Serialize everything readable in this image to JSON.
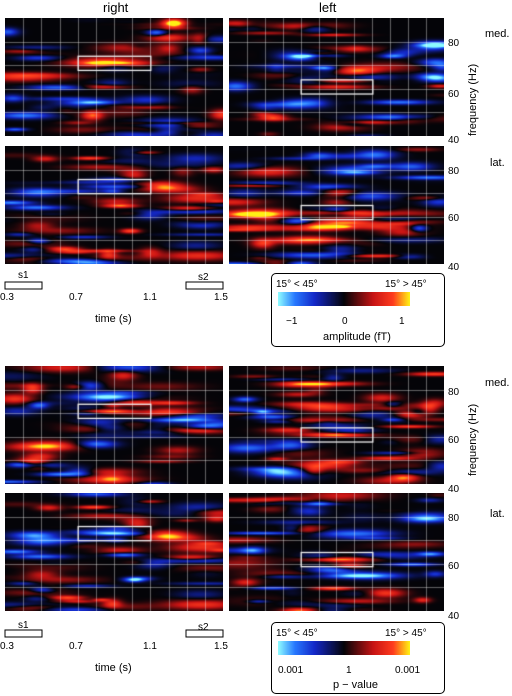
{
  "columns": {
    "right": "right",
    "left": "left"
  },
  "rows": {
    "med": "med.",
    "lat": "lat."
  },
  "y_axis": {
    "label": "frequency (Hz)",
    "ticks": [
      "80",
      "60",
      "40"
    ]
  },
  "time_axis": {
    "label": "time (s)",
    "ticks": [
      "0.3",
      "0.7",
      "1.1",
      "1.5"
    ],
    "s1": "s1",
    "s2": "s2"
  },
  "legend_top": {
    "left_title": "15° < 45°",
    "right_title": "15° > 45°",
    "ticks": [
      "−1",
      "0",
      "1"
    ],
    "label": "amplitude (fT)"
  },
  "legend_bottom": {
    "left_title": "15° < 45°",
    "right_title": "15° > 45°",
    "ticks": [
      "0.001",
      "1",
      "0.001"
    ],
    "label": "p − value"
  },
  "colors": {
    "positive": "#ff2a1a",
    "negative": "#1a50ff",
    "peak_pos": "#ffe600",
    "peak_neg": "#8af7ff"
  },
  "chart_data": [
    {
      "type": "heatmap",
      "block": "amplitude",
      "hemisphere": "right",
      "region": "med.",
      "x_range_s": [
        0.3,
        1.5
      ],
      "y_range_hz": [
        40,
        90
      ],
      "roi": {
        "t": [
          0.7,
          1.1
        ],
        "f": [
          68,
          74
        ]
      }
    },
    {
      "type": "heatmap",
      "block": "amplitude",
      "hemisphere": "left",
      "region": "med.",
      "x_range_s": [
        0.3,
        1.5
      ],
      "y_range_hz": [
        40,
        90
      ],
      "roi": {
        "t": [
          0.7,
          1.1
        ],
        "f": [
          58,
          64
        ]
      }
    },
    {
      "type": "heatmap",
      "block": "amplitude",
      "hemisphere": "right",
      "region": "lat.",
      "x_range_s": [
        0.3,
        1.5
      ],
      "y_range_hz": [
        40,
        90
      ],
      "roi": {
        "t": [
          0.7,
          1.1
        ],
        "f": [
          70,
          76
        ]
      }
    },
    {
      "type": "heatmap",
      "block": "amplitude",
      "hemisphere": "left",
      "region": "lat.",
      "x_range_s": [
        0.3,
        1.5
      ],
      "y_range_hz": [
        40,
        90
      ],
      "roi": {
        "t": [
          0.7,
          1.1
        ],
        "f": [
          59,
          65
        ]
      }
    },
    {
      "type": "heatmap",
      "block": "p-value",
      "hemisphere": "right",
      "region": "med.",
      "x_range_s": [
        0.3,
        1.5
      ],
      "y_range_hz": [
        40,
        90
      ],
      "roi": {
        "t": [
          0.7,
          1.1
        ],
        "f": [
          68,
          74
        ]
      }
    },
    {
      "type": "heatmap",
      "block": "p-value",
      "hemisphere": "left",
      "region": "med.",
      "x_range_s": [
        0.3,
        1.5
      ],
      "y_range_hz": [
        40,
        90
      ],
      "roi": {
        "t": [
          0.7,
          1.1
        ],
        "f": [
          58,
          64
        ]
      }
    },
    {
      "type": "heatmap",
      "block": "p-value",
      "hemisphere": "right",
      "region": "lat.",
      "x_range_s": [
        0.3,
        1.5
      ],
      "y_range_hz": [
        40,
        90
      ],
      "roi": {
        "t": [
          0.7,
          1.1
        ],
        "f": [
          70,
          76
        ]
      }
    },
    {
      "type": "heatmap",
      "block": "p-value",
      "hemisphere": "left",
      "region": "lat.",
      "x_range_s": [
        0.3,
        1.5
      ],
      "y_range_hz": [
        40,
        90
      ],
      "roi": {
        "t": [
          0.7,
          1.1
        ],
        "f": [
          59,
          65
        ]
      }
    }
  ]
}
